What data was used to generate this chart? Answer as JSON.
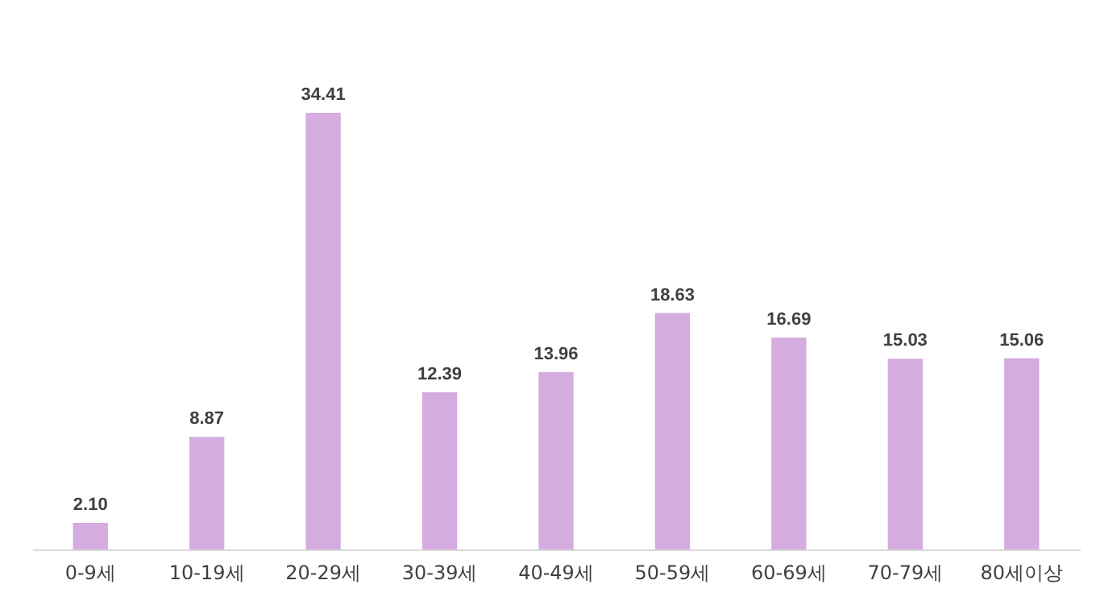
{
  "chart_data": {
    "type": "bar",
    "categories": [
      "0-9세",
      "10-19세",
      "20-29세",
      "30-39세",
      "40-49세",
      "50-59세",
      "60-69세",
      "70-79세",
      "80세이상"
    ],
    "values": [
      2.1,
      8.87,
      34.41,
      12.39,
      13.96,
      18.63,
      16.69,
      15.03,
      15.06
    ],
    "value_labels": [
      "2.10",
      "8.87",
      "34.41",
      "12.39",
      "13.96",
      "18.63",
      "16.69",
      "15.03",
      "15.06"
    ],
    "color": "#d5acdf"
  }
}
